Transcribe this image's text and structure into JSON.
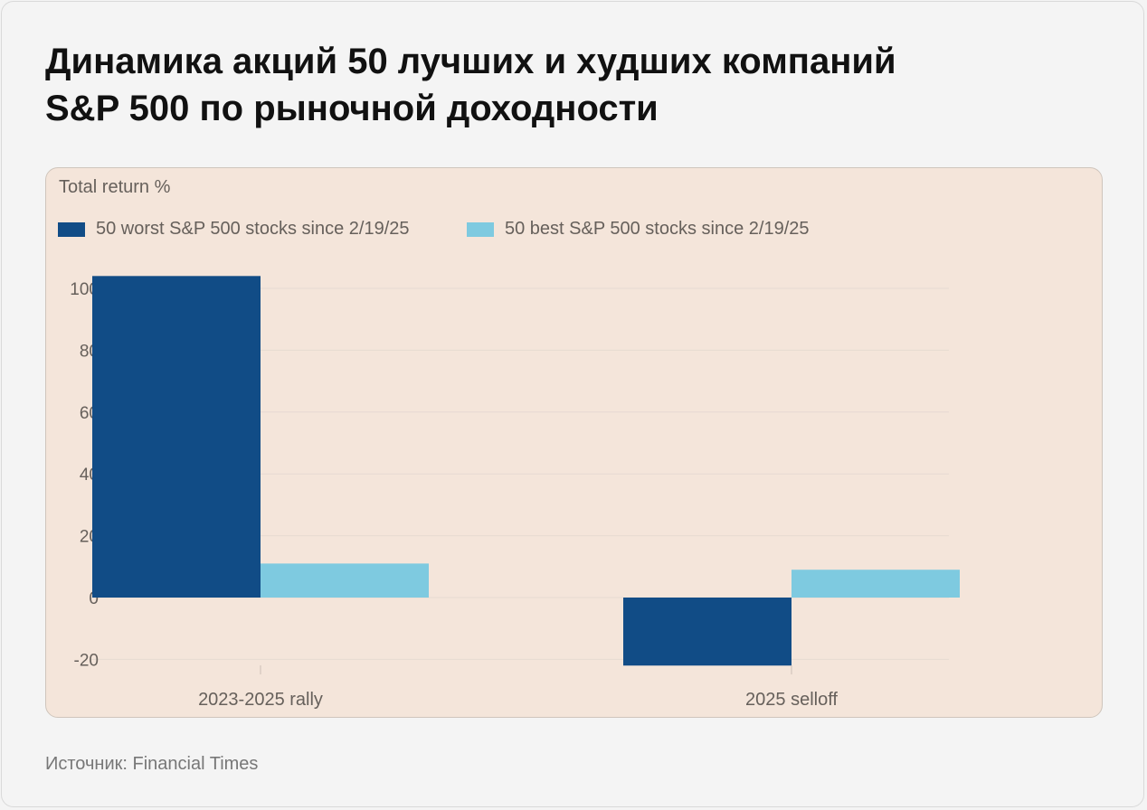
{
  "page": {
    "title_line1": "Динамика акций 50 лучших и худших компаний",
    "title_line2": "S&P 500 по рыночной доходности",
    "source": "Источник: Financial Times"
  },
  "colors": {
    "worst": "#114c86",
    "best": "#7ecae0",
    "panel_bg": "#f4e5da",
    "grid": "#e6dad1",
    "axis_text": "#66605b"
  },
  "chart_data": {
    "type": "bar",
    "ylabel": "Total return %",
    "xlabel": "",
    "categories": [
      "2023-2025 rally",
      "2025 selloff"
    ],
    "series": [
      {
        "name": "50 worst S&P 500 stocks since 2/19/25",
        "values": [
          104,
          -22
        ]
      },
      {
        "name": "50 best S&P 500 stocks since 2/19/25",
        "values": [
          11,
          9
        ]
      }
    ],
    "yticks": [
      100,
      80,
      60,
      40,
      20,
      0,
      -20
    ],
    "ylim": [
      -22,
      104
    ],
    "grid": true,
    "legend": "top-left"
  }
}
